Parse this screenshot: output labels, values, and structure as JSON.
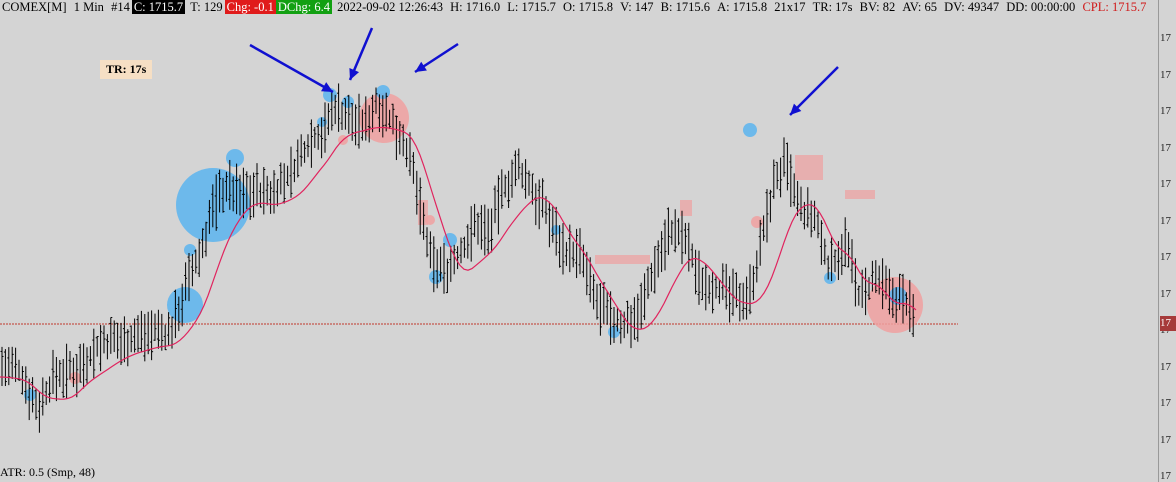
{
  "header": {
    "symbol": "COMEX[M]",
    "interval": "1 Min",
    "bar_number": "#14",
    "close": "C: 1715.7",
    "ticks": "T: 129",
    "change": "Chg: -0.1",
    "dchange": "DChg: 6.4",
    "datetime": "2022-09-02 12:26:43",
    "high": "H: 1716.0",
    "low": "L: 1715.7",
    "open": "O: 1715.8",
    "volume": "V: 147",
    "bid": "B: 1715.6",
    "ask": "A: 1715.8",
    "size": "21x17",
    "time_remaining": "TR: 17s",
    "bid_volume": "BV: 82",
    "ask_volume": "AV: 65",
    "delta_volume": "DV: 49347",
    "duration": "DD: 00:00:00",
    "cpl": "CPL: 1715.7"
  },
  "tr_badge": "TR: 17s",
  "footer": {
    "atr": "ATR: 0.5",
    "smoothing": "(Smp, 48)"
  },
  "price_axis": {
    "labels": [
      "17",
      "17",
      "17",
      "17",
      "17",
      "17",
      "17",
      "17",
      "17",
      "17",
      "17",
      "17",
      "17"
    ],
    "current": "17"
  },
  "colors": {
    "background": "#d4d4d4",
    "bar": "#000000",
    "moving_average": "#e0245e",
    "buy_bubble": "#5ab4ee",
    "sell_bubble": "#f0a0a0",
    "arrow": "#1010d0",
    "price_line": "#c0392b",
    "price_marker": "#a63a3a"
  }
}
